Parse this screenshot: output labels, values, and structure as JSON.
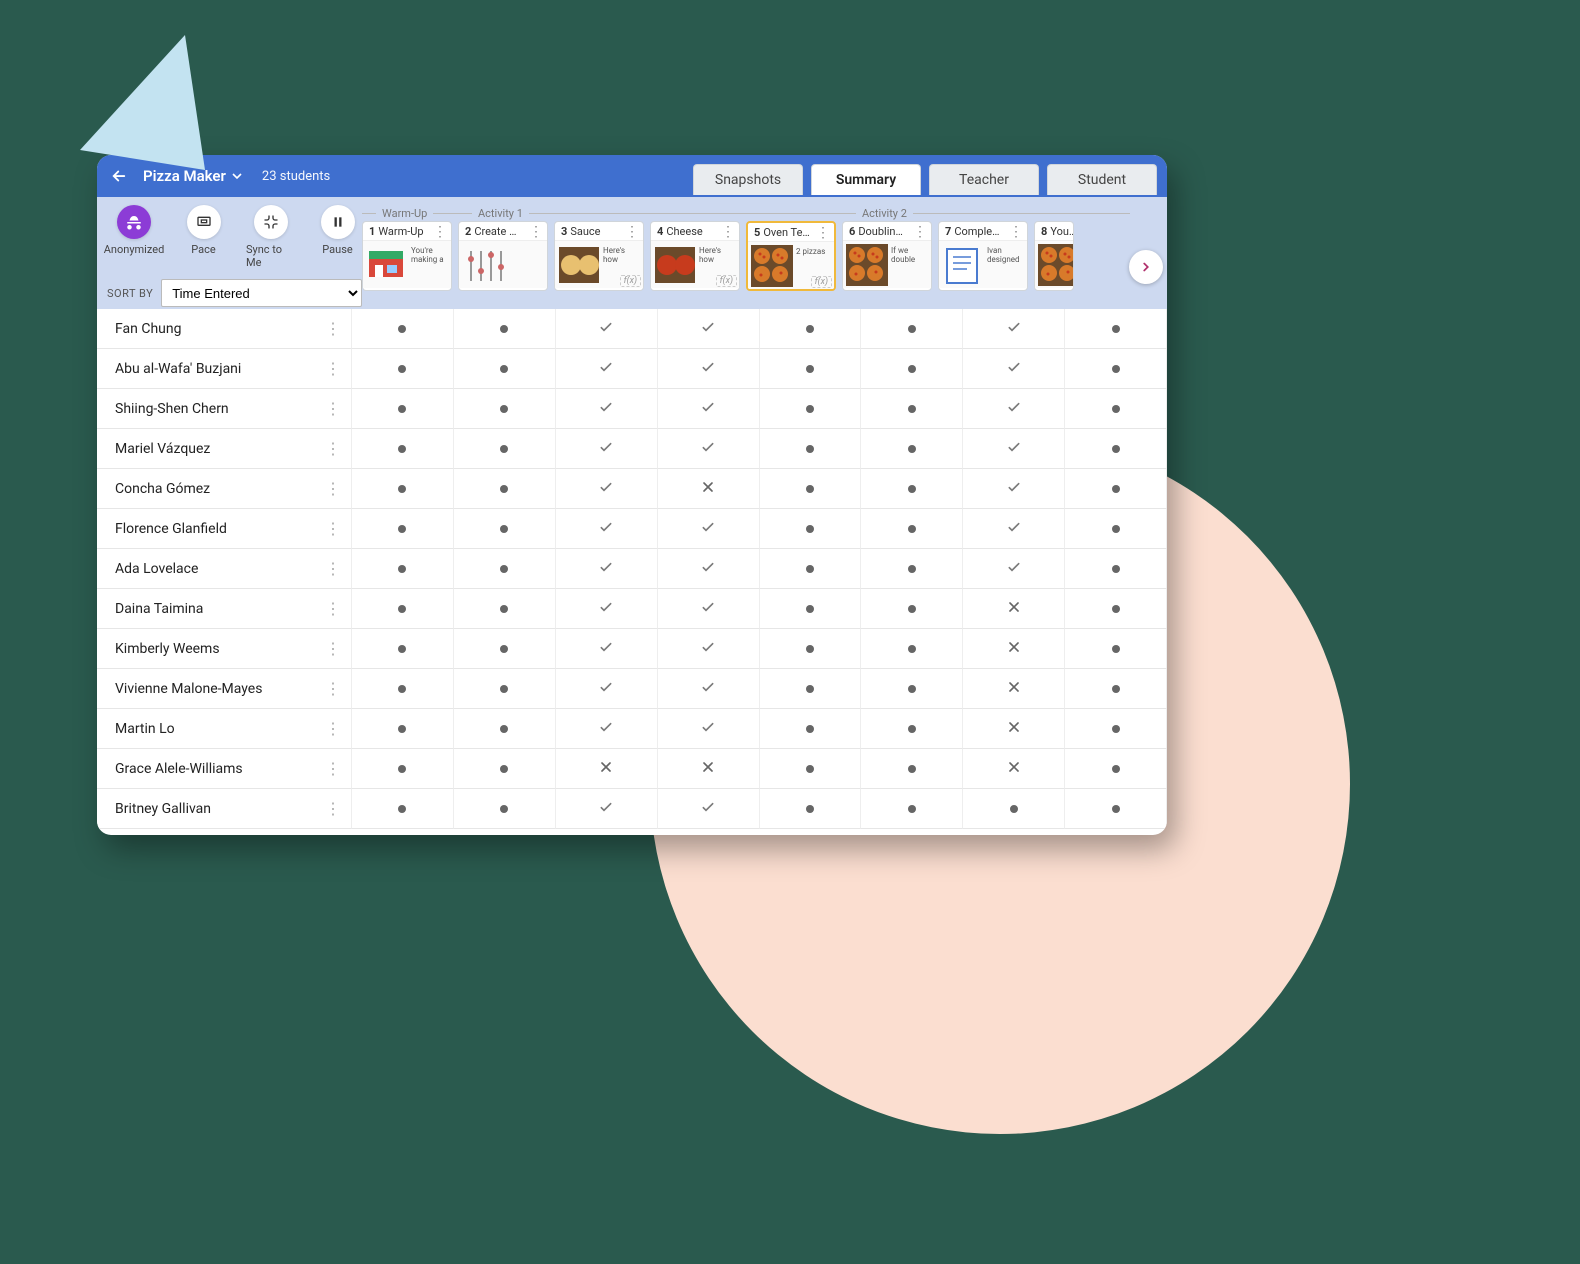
{
  "background": {
    "page_bg": "#2a5a4e",
    "circle_color": "#fbded0",
    "triangle_color": "#c3e3f1"
  },
  "header": {
    "title": "Pizza Maker",
    "student_count": "23 students",
    "tabs": [
      "Snapshots",
      "Summary",
      "Teacher",
      "Student"
    ],
    "active_tab_index": 1
  },
  "controls": [
    {
      "id": "anonymized",
      "label": "Anonymized",
      "icon": "incognito",
      "purple": true
    },
    {
      "id": "pace",
      "label": "Pace",
      "icon": "presentation",
      "purple": false
    },
    {
      "id": "sync",
      "label": "Sync to Me",
      "icon": "compress",
      "purple": false
    },
    {
      "id": "pause",
      "label": "Pause",
      "icon": "pause",
      "purple": false
    }
  ],
  "sort": {
    "label": "SORT BY",
    "value": "Time Entered",
    "options": [
      "Time Entered"
    ]
  },
  "sections": [
    {
      "name": "Warm-Up",
      "span": 1
    },
    {
      "name": "Activity 1",
      "span": 4
    },
    {
      "name": "Activity 2",
      "span": 3
    }
  ],
  "screens": [
    {
      "num": "1",
      "name": "Warm-Up",
      "caption": "You're making a",
      "thumb": "storefront"
    },
    {
      "num": "2",
      "name": "Create …",
      "caption": "",
      "thumb": "sliders"
    },
    {
      "num": "3",
      "name": "Sauce",
      "caption": "Here's how",
      "thumb": "dough",
      "fx": true
    },
    {
      "num": "4",
      "name": "Cheese",
      "caption": "Here's how",
      "thumb": "pizza-red",
      "fx": true
    },
    {
      "num": "5",
      "name": "Oven Te…",
      "caption": "2 pizzas",
      "thumb": "pizzas-4",
      "fx": true,
      "active": true
    },
    {
      "num": "6",
      "name": "Doublin…",
      "caption": "If we double",
      "thumb": "pizzas-4"
    },
    {
      "num": "7",
      "name": "Comple…",
      "caption": "Ivan designed",
      "thumb": "doc"
    },
    {
      "num": "8",
      "name": "You…",
      "caption": "",
      "thumb": "pizzas-4",
      "cut": true
    }
  ],
  "marks": {
    "dot": "dot",
    "check": "check",
    "x": "x"
  },
  "students": [
    {
      "name": "Fan Chung",
      "cells": [
        "dot",
        "dot",
        "check",
        "check",
        "dot",
        "dot",
        "check",
        "dot"
      ]
    },
    {
      "name": "Abu al-Wafa' Buzjani",
      "cells": [
        "dot",
        "dot",
        "check",
        "check",
        "dot",
        "dot",
        "check",
        "dot"
      ]
    },
    {
      "name": "Shiing-Shen Chern",
      "cells": [
        "dot",
        "dot",
        "check",
        "check",
        "dot",
        "dot",
        "check",
        "dot"
      ]
    },
    {
      "name": "Mariel Vázquez",
      "cells": [
        "dot",
        "dot",
        "check",
        "check",
        "dot",
        "dot",
        "check",
        "dot"
      ]
    },
    {
      "name": "Concha Gómez",
      "cells": [
        "dot",
        "dot",
        "check",
        "x",
        "dot",
        "dot",
        "check",
        "dot"
      ]
    },
    {
      "name": "Florence Glanfield",
      "cells": [
        "dot",
        "dot",
        "check",
        "check",
        "dot",
        "dot",
        "check",
        "dot"
      ]
    },
    {
      "name": "Ada Lovelace",
      "cells": [
        "dot",
        "dot",
        "check",
        "check",
        "dot",
        "dot",
        "check",
        "dot"
      ]
    },
    {
      "name": "Daina Taimina",
      "cells": [
        "dot",
        "dot",
        "check",
        "check",
        "dot",
        "dot",
        "x",
        "dot"
      ]
    },
    {
      "name": "Kimberly Weems",
      "cells": [
        "dot",
        "dot",
        "check",
        "check",
        "dot",
        "dot",
        "x",
        "dot"
      ]
    },
    {
      "name": "Vivienne Malone-Mayes",
      "cells": [
        "dot",
        "dot",
        "check",
        "check",
        "dot",
        "dot",
        "x",
        "dot"
      ]
    },
    {
      "name": "Martin Lo",
      "cells": [
        "dot",
        "dot",
        "check",
        "check",
        "dot",
        "dot",
        "x",
        "dot"
      ]
    },
    {
      "name": "Grace Alele-Williams",
      "cells": [
        "dot",
        "dot",
        "x",
        "x",
        "dot",
        "dot",
        "x",
        "dot"
      ]
    },
    {
      "name": "Britney Gallivan",
      "cells": [
        "dot",
        "dot",
        "check",
        "check",
        "dot",
        "dot",
        "dot",
        "dot"
      ]
    }
  ],
  "colors": {
    "header_bg": "#3f6fcf",
    "toolbar_bg": "#cdd9f0",
    "accent_purple": "#8c3cd6",
    "active_border": "#f0b93b",
    "scroll_arrow": "#b0306c"
  }
}
